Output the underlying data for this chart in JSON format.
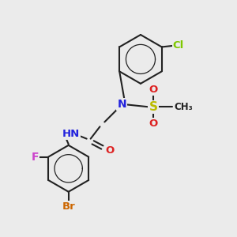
{
  "bg_color": "#ebebeb",
  "bond_color": "#222222",
  "bond_width": 1.5,
  "atoms": {
    "Cl": {
      "color": "#7ec800"
    },
    "N": {
      "color": "#2222dd"
    },
    "S": {
      "color": "#bbbb00"
    },
    "O": {
      "color": "#dd2222"
    },
    "F": {
      "color": "#cc44cc"
    },
    "Br": {
      "color": "#cc6600"
    }
  },
  "fontsize": 9.5
}
